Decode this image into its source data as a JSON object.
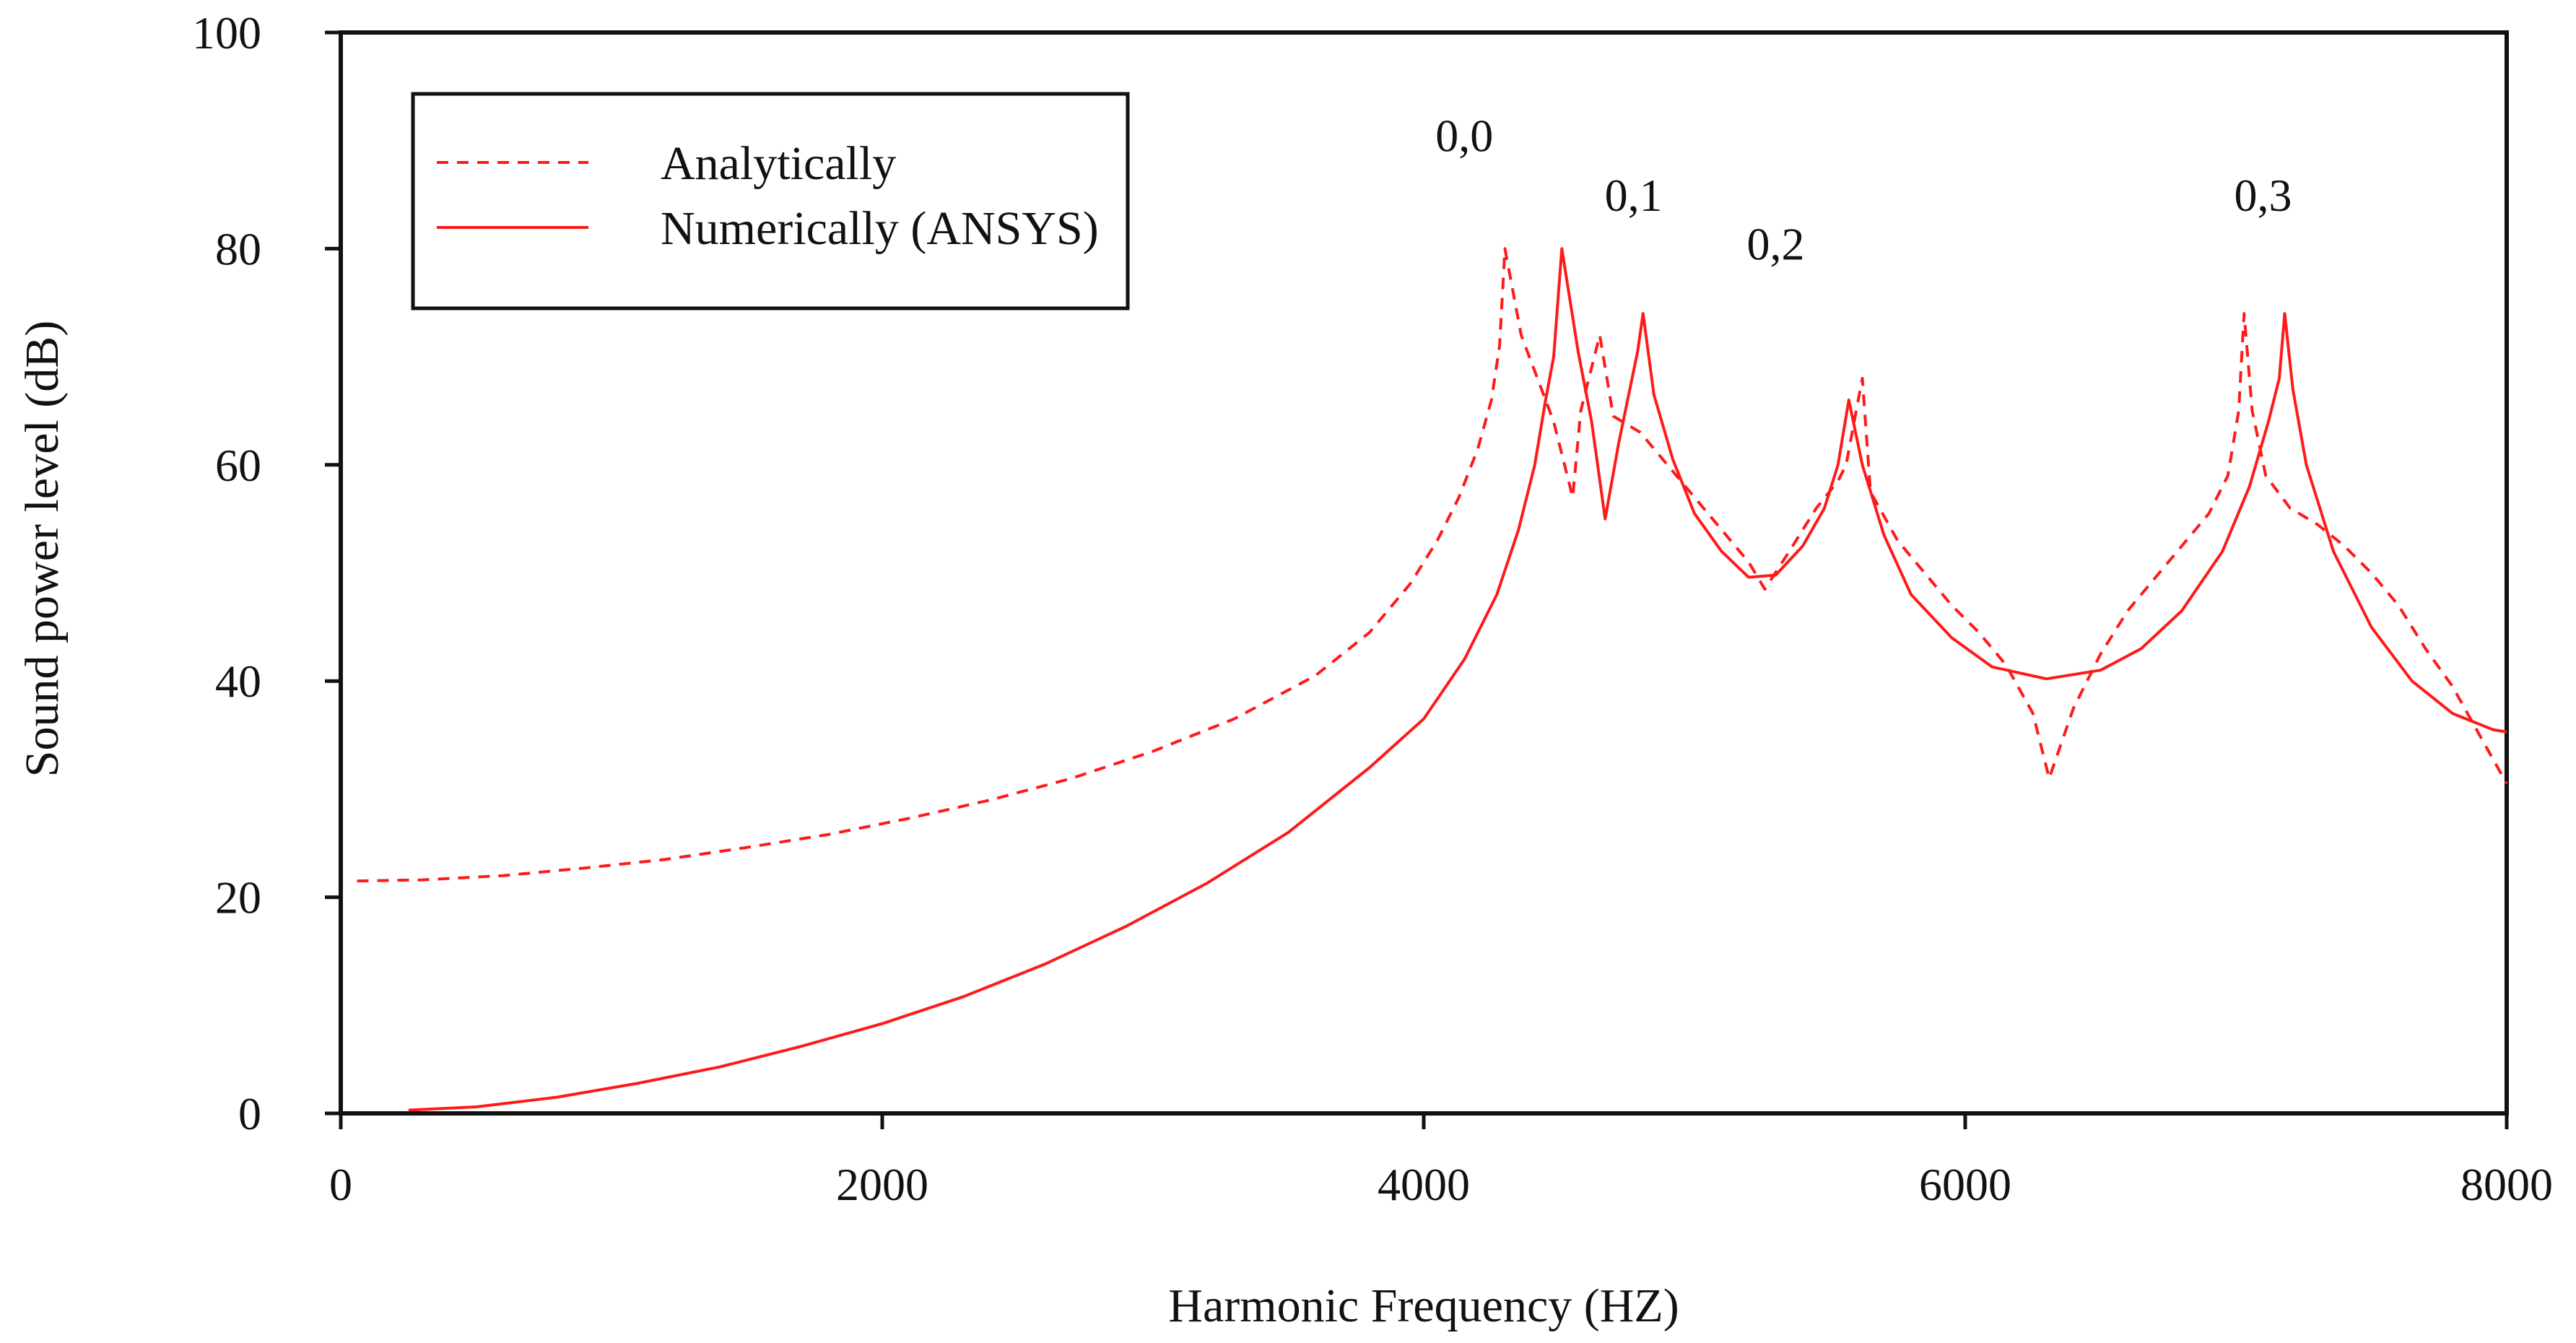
{
  "chart_data": {
    "type": "line",
    "title": "",
    "xlabel": "Harmonic Frequency (HZ)",
    "ylabel": "Sound power level (dB)",
    "xlim": [
      0,
      8000
    ],
    "ylim": [
      0,
      100
    ],
    "x_ticks": [
      0,
      2000,
      4000,
      6000,
      8000
    ],
    "x_tick_labels": [
      "0",
      "2000",
      "4000",
      "6000",
      "8000"
    ],
    "y_ticks": [
      0,
      20,
      40,
      60,
      80,
      100
    ],
    "y_tick_labels": [
      "0",
      "20",
      "40",
      "60",
      "80",
      "100"
    ],
    "grid": false,
    "legend_position": "top-left",
    "series": [
      {
        "name": "Analytically",
        "style": "dashed",
        "color": "#ff1a1a",
        "points": [
          [
            60,
            21.5
          ],
          [
            300,
            21.6
          ],
          [
            600,
            22.0
          ],
          [
            900,
            22.7
          ],
          [
            1200,
            23.5
          ],
          [
            1500,
            24.6
          ],
          [
            1800,
            25.8
          ],
          [
            2100,
            27.3
          ],
          [
            2400,
            29.0
          ],
          [
            2700,
            31.0
          ],
          [
            3000,
            33.5
          ],
          [
            3300,
            36.5
          ],
          [
            3600,
            40.5
          ],
          [
            3800,
            44.5
          ],
          [
            3950,
            49.0
          ],
          [
            4050,
            53.0
          ],
          [
            4130,
            57.0
          ],
          [
            4200,
            61.5
          ],
          [
            4250,
            66.0
          ],
          [
            4280,
            71.0
          ],
          [
            4300,
            80.0
          ],
          [
            4360,
            72.0
          ],
          [
            4420,
            68.0
          ],
          [
            4480,
            64.0
          ],
          [
            4550,
            57.0
          ],
          [
            4580,
            65.0
          ],
          [
            4650,
            72.0
          ],
          [
            4700,
            64.5
          ],
          [
            4800,
            63.0
          ],
          [
            4900,
            60.0
          ],
          [
            5000,
            57.0
          ],
          [
            5100,
            54.0
          ],
          [
            5200,
            51.0
          ],
          [
            5260,
            48.5
          ],
          [
            5350,
            52.0
          ],
          [
            5450,
            56.0
          ],
          [
            5530,
            58.5
          ],
          [
            5560,
            60.0
          ],
          [
            5620,
            68.0
          ],
          [
            5650,
            57.5
          ],
          [
            5750,
            53.0
          ],
          [
            5850,
            50.0
          ],
          [
            5950,
            47.0
          ],
          [
            6050,
            44.5
          ],
          [
            6150,
            41.5
          ],
          [
            6250,
            37.0
          ],
          [
            6310,
            31.0
          ],
          [
            6400,
            37.5
          ],
          [
            6500,
            42.5
          ],
          [
            6600,
            46.5
          ],
          [
            6700,
            49.5
          ],
          [
            6800,
            52.5
          ],
          [
            6900,
            55.5
          ],
          [
            6970,
            59.0
          ],
          [
            7010,
            65.0
          ],
          [
            7030,
            74.0
          ],
          [
            7060,
            65.0
          ],
          [
            7110,
            59.0
          ],
          [
            7200,
            56.0
          ],
          [
            7300,
            54.5
          ],
          [
            7400,
            52.5
          ],
          [
            7500,
            50.0
          ],
          [
            7600,
            47.0
          ],
          [
            7700,
            43.0
          ],
          [
            7800,
            39.5
          ],
          [
            7900,
            35.0
          ],
          [
            8000,
            30.5
          ]
        ]
      },
      {
        "name": "Numerically (ANSYS)",
        "style": "solid",
        "color": "#ff1a1a",
        "points": [
          [
            250,
            0.3
          ],
          [
            500,
            0.6
          ],
          [
            800,
            1.5
          ],
          [
            1100,
            2.8
          ],
          [
            1400,
            4.3
          ],
          [
            1700,
            6.2
          ],
          [
            2000,
            8.3
          ],
          [
            2300,
            10.8
          ],
          [
            2600,
            13.8
          ],
          [
            2900,
            17.3
          ],
          [
            3200,
            21.3
          ],
          [
            3500,
            26.0
          ],
          [
            3800,
            32.0
          ],
          [
            4000,
            36.5
          ],
          [
            4150,
            42.0
          ],
          [
            4270,
            48.0
          ],
          [
            4350,
            54.0
          ],
          [
            4410,
            60.0
          ],
          [
            4450,
            66.0
          ],
          [
            4480,
            70.0
          ],
          [
            4510,
            80.0
          ],
          [
            4570,
            70.5
          ],
          [
            4620,
            64.0
          ],
          [
            4670,
            55.0
          ],
          [
            4720,
            62.0
          ],
          [
            4790,
            70.5
          ],
          [
            4810,
            74.0
          ],
          [
            4850,
            66.5
          ],
          [
            4920,
            60.5
          ],
          [
            5000,
            55.5
          ],
          [
            5100,
            52.0
          ],
          [
            5200,
            49.6
          ],
          [
            5300,
            49.8
          ],
          [
            5400,
            52.5
          ],
          [
            5480,
            56.0
          ],
          [
            5530,
            60.0
          ],
          [
            5570,
            66.0
          ],
          [
            5620,
            60.0
          ],
          [
            5700,
            53.5
          ],
          [
            5800,
            48.0
          ],
          [
            5950,
            44.0
          ],
          [
            6100,
            41.3
          ],
          [
            6300,
            40.2
          ],
          [
            6500,
            41.0
          ],
          [
            6650,
            43.0
          ],
          [
            6800,
            46.5
          ],
          [
            6950,
            52.0
          ],
          [
            7050,
            58.0
          ],
          [
            7120,
            64.0
          ],
          [
            7160,
            68.0
          ],
          [
            7180,
            74.0
          ],
          [
            7210,
            67.0
          ],
          [
            7260,
            60.0
          ],
          [
            7360,
            52.0
          ],
          [
            7500,
            45.0
          ],
          [
            7650,
            40.0
          ],
          [
            7800,
            37.0
          ],
          [
            7950,
            35.5
          ],
          [
            8000,
            35.3
          ]
        ]
      }
    ],
    "annotations": [
      {
        "text": "0,0",
        "x": 4150,
        "y": 89.0
      },
      {
        "text": "0,1",
        "x": 4775,
        "y": 83.5
      },
      {
        "text": "0,2",
        "x": 5300,
        "y": 79.0
      },
      {
        "text": "0,3",
        "x": 7100,
        "y": 83.5
      }
    ]
  }
}
